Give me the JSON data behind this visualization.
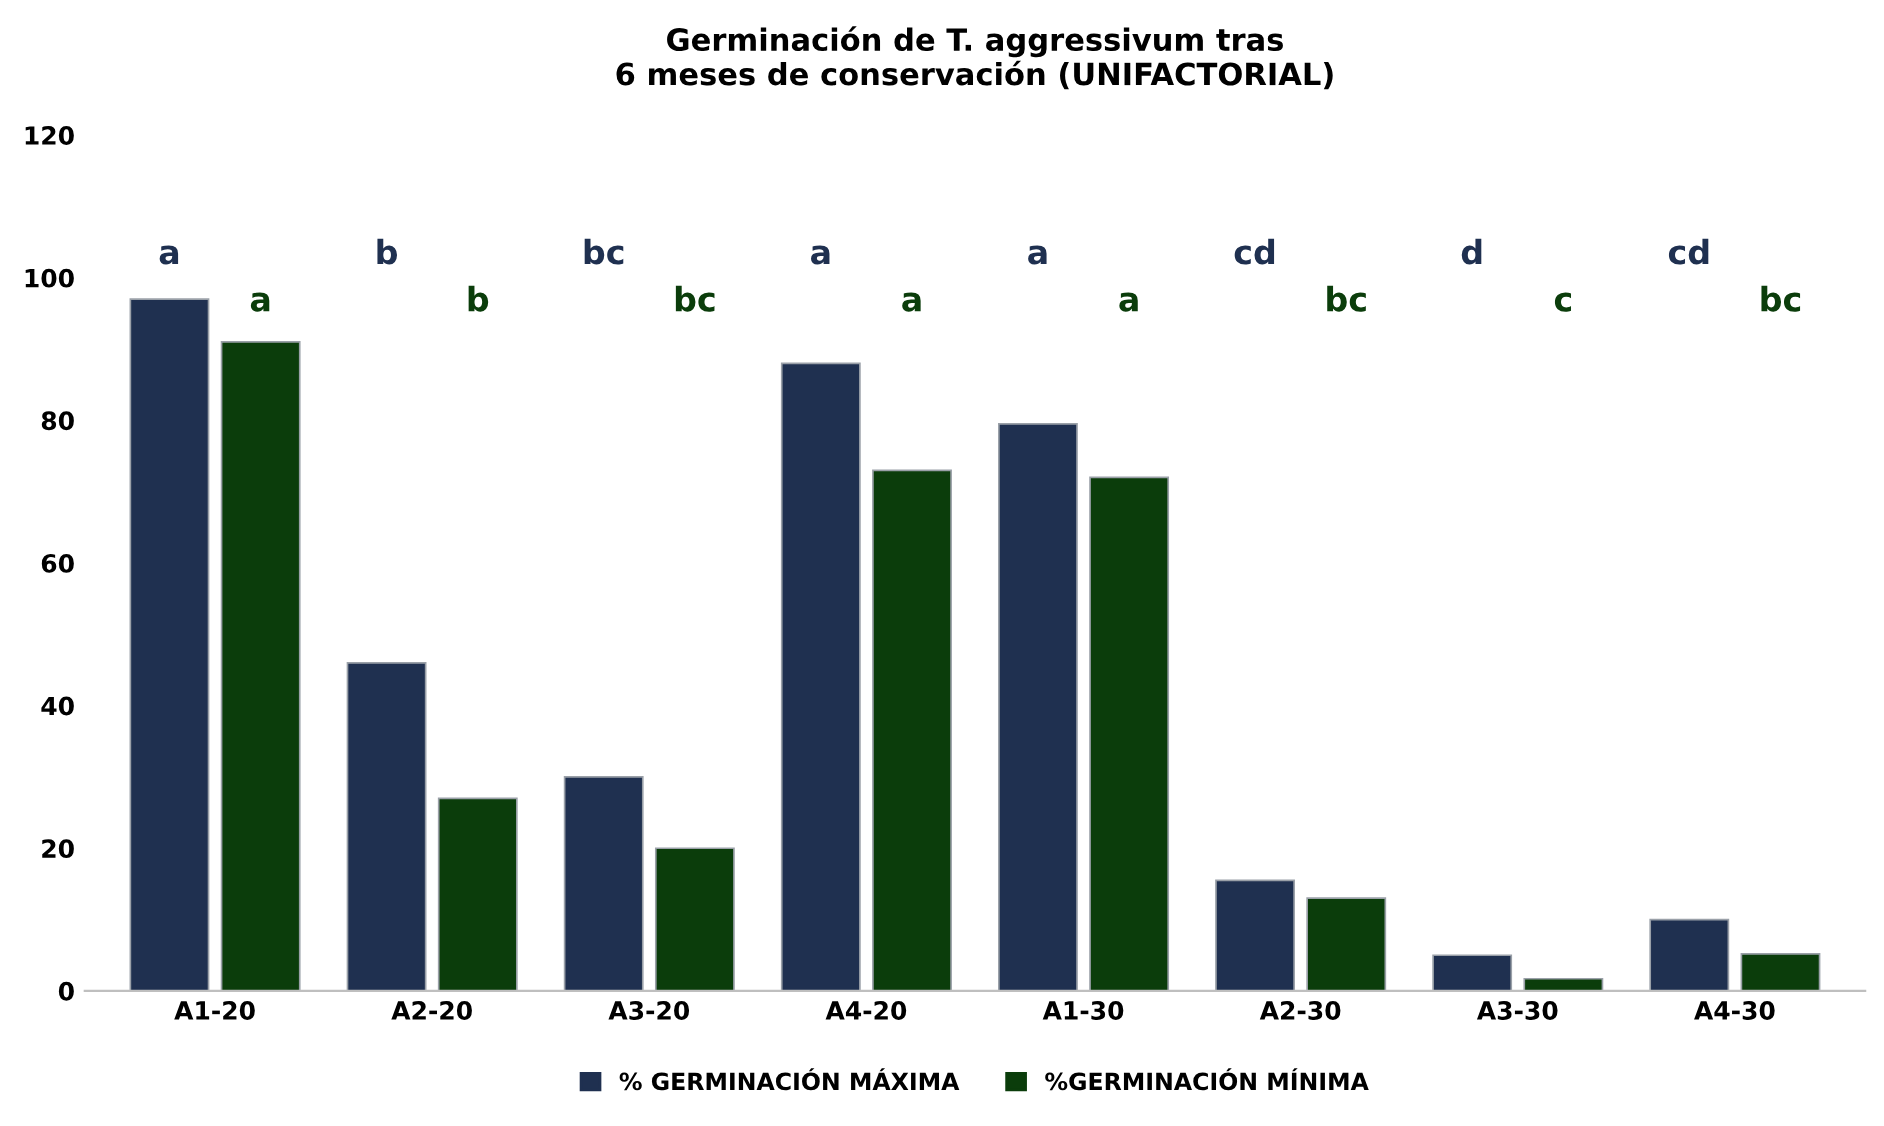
{
  "chart_data": {
    "type": "bar",
    "title": "Germinación de T. aggressivum tras\n6 meses de conservación (UNIFACTORIAL)",
    "categories": [
      "A1-20",
      "A2-20",
      "A3-20",
      "A4-20",
      "A1-30",
      "A2-30",
      "A3-30",
      "A4-30"
    ],
    "series": [
      {
        "name": "% GERMINACIÓN MÁXIMA",
        "color": "#1f3050",
        "values": [
          97,
          46,
          30,
          88,
          79.5,
          15.5,
          5,
          10
        ]
      },
      {
        "name": "%GERMINACIÓN MÍNIMA",
        "color": "#0b3d0b",
        "values": [
          91,
          27,
          20,
          73,
          72,
          13,
          1.7,
          5.2
        ]
      }
    ],
    "ylim": [
      0,
      120
    ],
    "yticks": [
      0,
      20,
      40,
      60,
      80,
      100,
      120
    ],
    "grid": false,
    "legend": "bottom",
    "annotations": [
      "a",
      "b",
      "bc",
      "a",
      "a",
      "cd",
      "d",
      "cd",
      "a",
      "b",
      "bc",
      "a",
      "a",
      "bc",
      "c",
      "bc"
    ]
  }
}
